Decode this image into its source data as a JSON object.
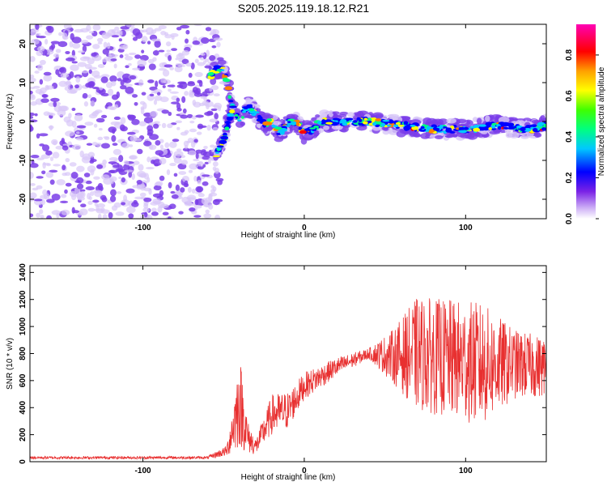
{
  "title": "S205.2025.119.18.12.R21",
  "colors": {
    "snr_line": "#e83030",
    "spectrogram_noise": "#7a3de8",
    "spectrogram_noise_light": "#d8c8f8",
    "frame": "#000000"
  },
  "chart_data": [
    {
      "type": "heatmap",
      "title": "S205.2025.119.18.12.R21",
      "xlabel": "Height of straight line (km)",
      "ylabel": "Frequency (Hz)",
      "xlim": [
        -170,
        150
      ],
      "ylim": [
        -25,
        25
      ],
      "x_ticks": [
        -100,
        0,
        100
      ],
      "y_ticks": [
        -20,
        -10,
        0,
        10,
        20
      ],
      "x_tick_labels": [
        "-100",
        "0",
        "100"
      ],
      "y_tick_labels": [
        "-20",
        "-10",
        "0",
        "10",
        "20"
      ],
      "grid": false,
      "colorbar": {
        "label": "Normalized spectral amplitude",
        "range": [
          0.0,
          0.95
        ],
        "ticks": [
          0.0,
          0.2,
          0.4,
          0.6,
          0.8
        ],
        "tick_labels": [
          "0.0",
          "0.2",
          "0.4",
          "0.6",
          "0.8"
        ],
        "colormap": "rainbow (white-violet-blue-cyan-green-yellow-red-magenta)"
      },
      "signal_track": [
        {
          "x": -58,
          "y": 12
        },
        {
          "x": -52,
          "y": 14
        },
        {
          "x": -48,
          "y": 11
        },
        {
          "x": -45,
          "y": 4
        },
        {
          "x": -40,
          "y": 0
        },
        {
          "x": -35,
          "y": 4
        },
        {
          "x": -30,
          "y": 2
        },
        {
          "x": -25,
          "y": -1
        },
        {
          "x": -20,
          "y": 0
        },
        {
          "x": -15,
          "y": -3
        },
        {
          "x": -10,
          "y": 0
        },
        {
          "x": -5,
          "y": 0
        },
        {
          "x": 0,
          "y": -3
        },
        {
          "x": 5,
          "y": -2
        },
        {
          "x": 10,
          "y": 0
        },
        {
          "x": 20,
          "y": 0
        },
        {
          "x": 40,
          "y": 0
        },
        {
          "x": 60,
          "y": -1
        },
        {
          "x": 80,
          "y": -2
        },
        {
          "x": 100,
          "y": -2
        },
        {
          "x": 120,
          "y": -1
        },
        {
          "x": 140,
          "y": -2
        },
        {
          "x": 150,
          "y": -1
        }
      ],
      "signal_branch": [
        {
          "x": -55,
          "y": -9
        },
        {
          "x": -50,
          "y": -5
        },
        {
          "x": -47,
          "y": 0
        },
        {
          "x": -44,
          "y": 4
        }
      ],
      "noise_region_x": [
        -170,
        -55
      ]
    },
    {
      "type": "line",
      "xlabel": "Height of straight line (km)",
      "ylabel": "SNR (10 * v/v)",
      "xlim": [
        -170,
        150
      ],
      "ylim": [
        0,
        1450
      ],
      "x_ticks": [
        -100,
        0,
        100
      ],
      "y_ticks": [
        0,
        200,
        400,
        600,
        800,
        1000,
        1200,
        1400
      ],
      "x_tick_labels": [
        "-100",
        "0",
        "100"
      ],
      "y_tick_labels": [
        "0",
        "200",
        "400",
        "600",
        "800",
        "1000",
        "1200",
        "1400"
      ],
      "grid": false,
      "series": [
        {
          "envelope": [
            {
              "x": -170,
              "mean": 30,
              "amp": 10
            },
            {
              "x": -60,
              "mean": 30,
              "amp": 10
            },
            {
              "x": -48,
              "mean": 80,
              "amp": 40
            },
            {
              "x": -40,
              "mean": 450,
              "amp": 350
            },
            {
              "x": -35,
              "mean": 180,
              "amp": 120
            },
            {
              "x": -30,
              "mean": 110,
              "amp": 60
            },
            {
              "x": -20,
              "mean": 350,
              "amp": 150
            },
            {
              "x": -10,
              "mean": 380,
              "amp": 140
            },
            {
              "x": 0,
              "mean": 560,
              "amp": 100
            },
            {
              "x": 20,
              "mean": 700,
              "amp": 70
            },
            {
              "x": 40,
              "mean": 800,
              "amp": 40
            },
            {
              "x": 55,
              "mean": 780,
              "amp": 200
            },
            {
              "x": 70,
              "mean": 800,
              "amp": 420
            },
            {
              "x": 90,
              "mean": 760,
              "amp": 440
            },
            {
              "x": 110,
              "mean": 720,
              "amp": 460
            },
            {
              "x": 130,
              "mean": 720,
              "amp": 260
            },
            {
              "x": 150,
              "mean": 700,
              "amp": 220
            }
          ]
        }
      ]
    }
  ]
}
